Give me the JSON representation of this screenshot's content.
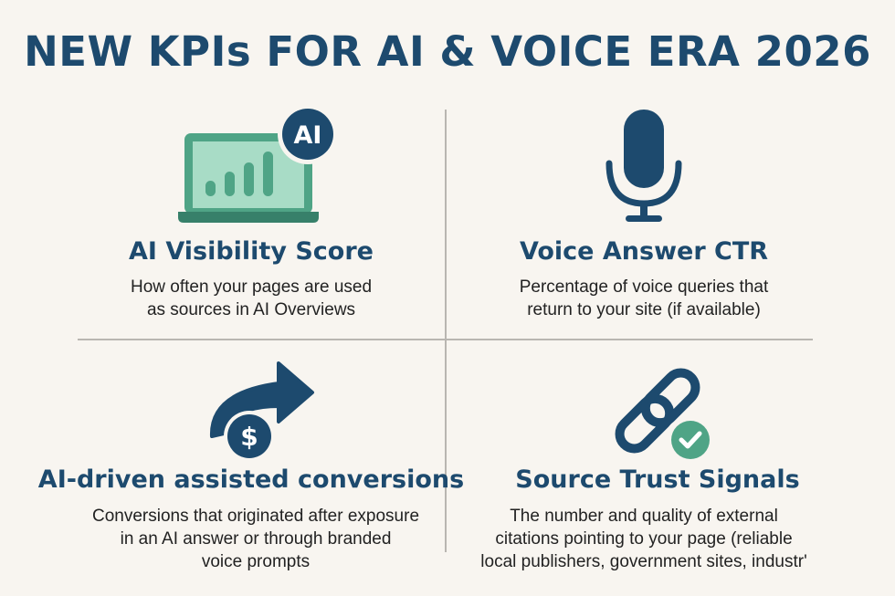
{
  "title": "NEW KPIs FOR AI & VOICE ERA 2026",
  "colors": {
    "primary": "#1d4a6e",
    "accent_green": "#4fa486",
    "background": "#f8f5f0"
  },
  "kpis": [
    {
      "icon": "laptop-chart-ai-icon",
      "badge": "AI",
      "title": "AI Visibility Score",
      "description": "How often your pages are used\nas sources in AI Overviews"
    },
    {
      "icon": "microphone-icon",
      "title": "Voice Answer CTR",
      "description": "Percentage of voice queries that\nreturn to your site (if available)"
    },
    {
      "icon": "arrow-dollar-icon",
      "title": "AI-driven assisted conversions",
      "description": "Conversions that originated after exposure\nin an AI answer or through branded\nvoice prompts"
    },
    {
      "icon": "link-check-icon",
      "title": "Source Trust Signals",
      "description": "The number and quality of external\ncitations pointing to your page (reliable\nlocal publishers, government sites, industr'"
    }
  ]
}
